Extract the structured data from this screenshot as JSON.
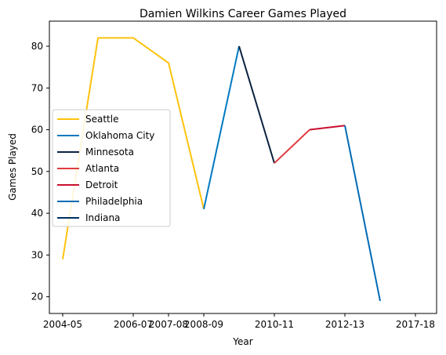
{
  "chart_data": {
    "type": "line",
    "title": "Damien Wilkins Career Games Played",
    "xlabel": "Year",
    "ylabel": "Games Played",
    "x": [
      "2004-05",
      "2005-06",
      "2006-07",
      "2007-08",
      "2008-09",
      "2009-10",
      "2010-11",
      "2011-12",
      "2012-13",
      "2016-17",
      "2017-18"
    ],
    "xticks": [
      "2004-05",
      "2006-07",
      "2007-08",
      "2008-09",
      "2010-11",
      "2012-13",
      "2017-18"
    ],
    "ylim": [
      16,
      86
    ],
    "yticks": [
      20,
      30,
      40,
      50,
      60,
      70,
      80
    ],
    "grid": false,
    "legend_position": "center-left",
    "series": [
      {
        "name": "Seattle",
        "color": "#FFC20E",
        "x": [
          "2004-05",
          "2005-06",
          "2006-07",
          "2007-08",
          "2008-09"
        ],
        "values": [
          29,
          82,
          82,
          76,
          41
        ]
      },
      {
        "name": "Oklahoma City",
        "color": "#007AC1",
        "x": [
          "2008-09",
          "2009-10"
        ],
        "values": [
          41,
          80
        ]
      },
      {
        "name": "Minnesota",
        "color": "#0C2340",
        "x": [
          "2009-10",
          "2010-11"
        ],
        "values": [
          80,
          52
        ]
      },
      {
        "name": "Atlanta",
        "color": "#E03A3E",
        "x": [
          "2010-11",
          "2011-12"
        ],
        "values": [
          52,
          60
        ]
      },
      {
        "name": "Detroit",
        "color": "#C8102E",
        "x": [
          "2011-12",
          "2012-13"
        ],
        "values": [
          60,
          61
        ]
      },
      {
        "name": "Philadelphia",
        "color": "#006BB6",
        "x": [
          "2012-13",
          "2016-17"
        ],
        "values": [
          61,
          19
        ]
      },
      {
        "name": "Indiana",
        "color": "#002D62",
        "x": [],
        "values": []
      }
    ]
  }
}
